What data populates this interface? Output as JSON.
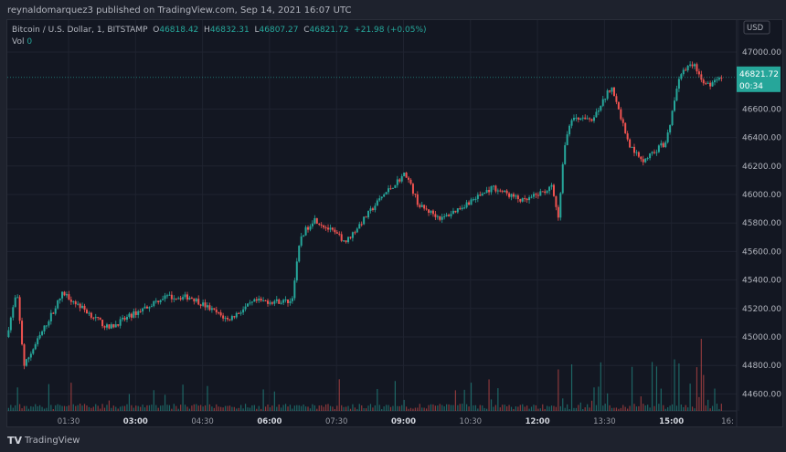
{
  "header": {
    "published": "reynaldomarquez3 published on TradingView.com, Sep 14, 2021 16:07 UTC"
  },
  "legend": {
    "symbol": "Bitcoin / U.S. Dollar, 1, BITSTAMP",
    "open_label": "O",
    "open": "46818.42",
    "high_label": "H",
    "high": "46832.31",
    "low_label": "L",
    "low": "46807.27",
    "close_label": "C",
    "close": "46821.72",
    "change": "+21.98 (+0.05%)",
    "vol_label": "Vol",
    "vol": "0"
  },
  "price_axis": {
    "currency": "USD",
    "last_price": "46821.72",
    "countdown": "00:34"
  },
  "footer": {
    "brand": "TradingView",
    "logo_mark": "TV"
  },
  "colors": {
    "up": "#26a69a",
    "down": "#ef5350",
    "background": "#131722",
    "grid": "#1f2330"
  },
  "chart_data": {
    "type": "candlestick",
    "interval": "1 min",
    "ylim": [
      44500,
      47100
    ],
    "yticks": [
      "47000.00",
      "46600.00",
      "46400.00",
      "46200.00",
      "46000.00",
      "45800.00",
      "45600.00",
      "45400.00",
      "45200.00",
      "45000.00",
      "44800.00",
      "44600.00"
    ],
    "xticks": [
      "01:30",
      "03:00",
      "04:30",
      "06:00",
      "07:30",
      "09:00",
      "10:30",
      "12:00",
      "13:30",
      "15:00",
      "16:"
    ],
    "xticks_bold": [
      "03:00",
      "06:00",
      "09:00",
      "12:00",
      "15:00"
    ],
    "price_path": [
      [
        "00:08",
        45000
      ],
      [
        "00:22",
        45314
      ],
      [
        "00:32",
        44800
      ],
      [
        "01:24",
        45310
      ],
      [
        "02:25",
        45060
      ],
      [
        "03:39",
        45280
      ],
      [
        "04:16",
        45280
      ],
      [
        "05:05",
        45120
      ],
      [
        "05:42",
        45250
      ],
      [
        "06:31",
        45250
      ],
      [
        "06:43",
        45700
      ],
      [
        "07:01",
        45830
      ],
      [
        "07:44",
        45670
      ],
      [
        "08:33",
        45990
      ],
      [
        "09:04",
        46150
      ],
      [
        "09:22",
        45920
      ],
      [
        "09:53",
        45830
      ],
      [
        "11:01",
        46050
      ],
      [
        "11:43",
        45950
      ],
      [
        "12:20",
        46050
      ],
      [
        "12:29",
        45830
      ],
      [
        "12:36",
        46270
      ],
      [
        "12:45",
        46530
      ],
      [
        "13:16",
        46530
      ],
      [
        "13:40",
        46760
      ],
      [
        "14:05",
        46340
      ],
      [
        "14:23",
        46240
      ],
      [
        "14:54",
        46370
      ],
      [
        "15:12",
        46850
      ],
      [
        "15:30",
        46920
      ],
      [
        "15:48",
        46760
      ],
      [
        "16:07",
        46821.72
      ]
    ]
  }
}
